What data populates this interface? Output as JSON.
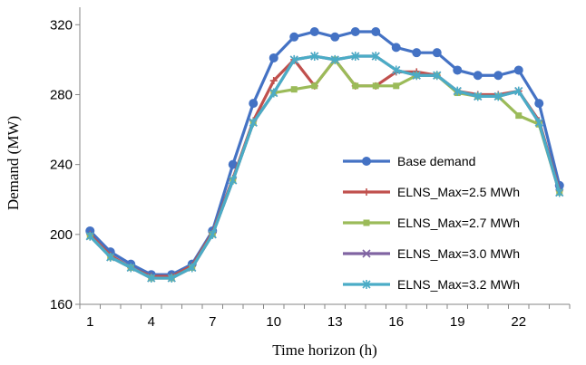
{
  "chart_data": {
    "type": "line",
    "title": "",
    "xlabel": "Time horizon (h)",
    "ylabel": "Demand (MW)",
    "x": [
      1,
      2,
      3,
      4,
      5,
      6,
      7,
      8,
      9,
      10,
      11,
      12,
      13,
      14,
      15,
      16,
      17,
      18,
      19,
      20,
      21,
      22,
      23,
      24
    ],
    "xticks": [
      1,
      4,
      7,
      10,
      13,
      16,
      19,
      22
    ],
    "yticks": [
      160,
      200,
      240,
      280,
      320
    ],
    "xlim": [
      0.5,
      24.5
    ],
    "ylim": [
      160,
      330
    ],
    "grid": false,
    "legend_position": "right-inside",
    "series": [
      {
        "name": "Base demand",
        "color": "#4472C4",
        "marker": "circle",
        "values": [
          202,
          190,
          183,
          177,
          177,
          183,
          202,
          240,
          275,
          301,
          313,
          316,
          313,
          316,
          316,
          307,
          304,
          304,
          294,
          291,
          291,
          294,
          275,
          228
        ]
      },
      {
        "name": "ELNS_Max=2.5 MWh",
        "color": "#C0504D",
        "marker": "plus",
        "values": [
          200,
          188,
          181,
          176,
          176,
          182,
          201,
          232,
          265,
          288,
          300,
          285,
          300,
          285,
          285,
          293,
          293,
          291,
          282,
          280,
          280,
          282,
          265,
          225
        ]
      },
      {
        "name": "ELNS_Max=2.7 MWh",
        "color": "#9BBB59",
        "marker": "square",
        "values": [
          199,
          187,
          181,
          175,
          175,
          181,
          200,
          231,
          264,
          281,
          283,
          285,
          300,
          285,
          285,
          285,
          291,
          291,
          281,
          279,
          279,
          268,
          263,
          224
        ]
      },
      {
        "name": "ELNS_Max=3.0 MWh",
        "color": "#8064A2",
        "marker": "x",
        "values": [
          199,
          187,
          181,
          175,
          175,
          181,
          200,
          231,
          264,
          281,
          300,
          302,
          300,
          302,
          302,
          294,
          291,
          291,
          282,
          279,
          279,
          282,
          264,
          224
        ]
      },
      {
        "name": "ELNS_Max=3.2 MWh",
        "color": "#4BACC6",
        "marker": "star",
        "values": [
          199,
          187,
          181,
          175,
          175,
          181,
          200,
          231,
          264,
          281,
          300,
          302,
          300,
          302,
          302,
          294,
          291,
          291,
          282,
          279,
          279,
          282,
          264,
          224
        ]
      }
    ]
  }
}
